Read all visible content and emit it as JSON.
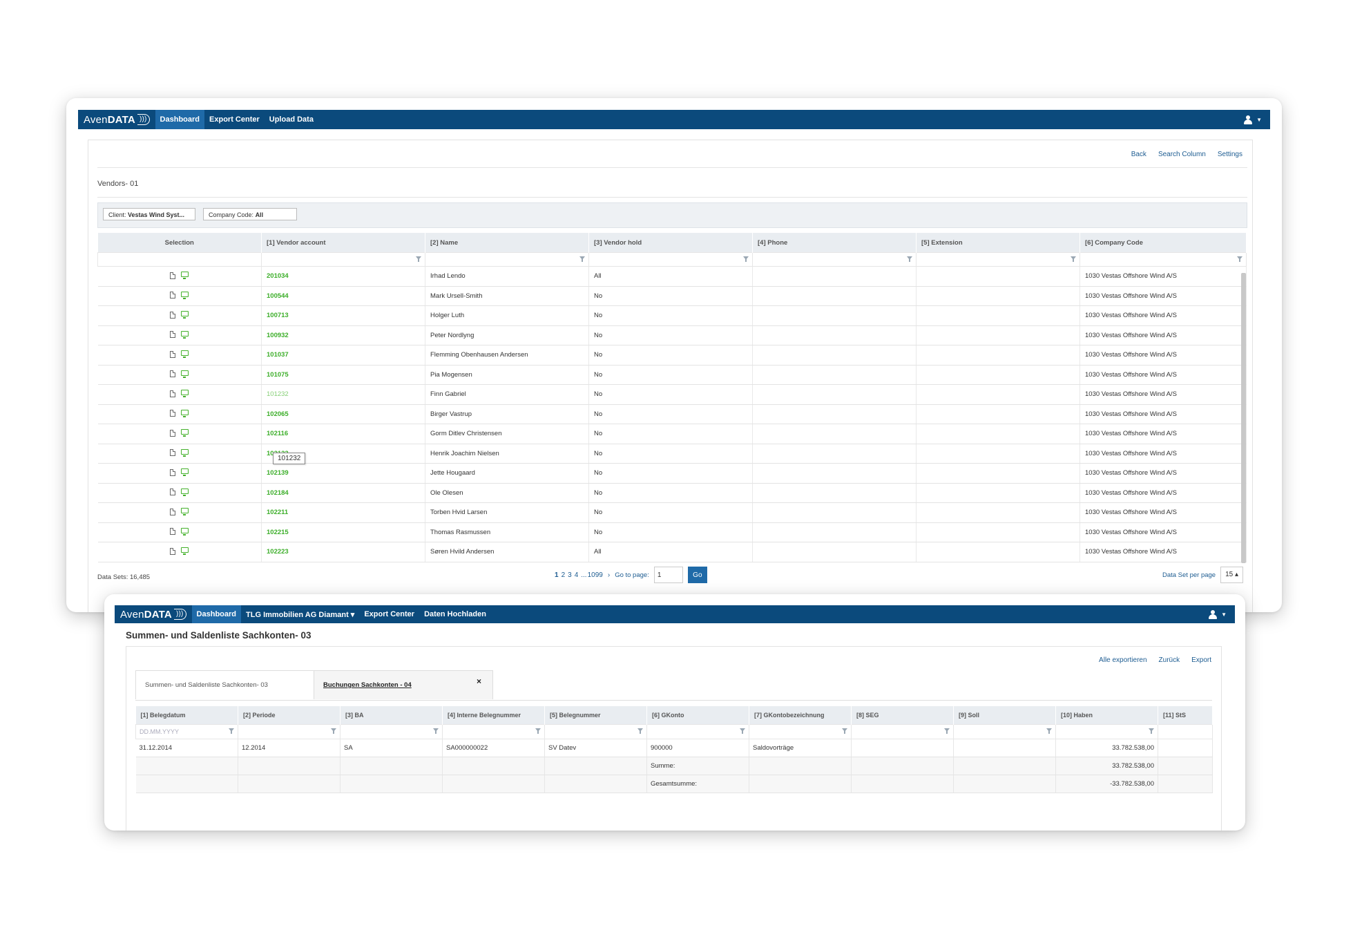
{
  "window1": {
    "nav": {
      "logo_light": "Aven",
      "logo_bold": "DATA",
      "items": [
        "Dashboard",
        "Export Center",
        "Upload Data"
      ]
    },
    "toplinks": [
      "Back",
      "Search Column",
      "Settings"
    ],
    "heading": "Vendors- 01",
    "filters": {
      "client_label": "Client:",
      "client_value": "Vestas Wind Syst...",
      "company_label": "Company Code:",
      "company_value": "All"
    },
    "columns": [
      "Selection",
      "[1] Vendor account",
      "[2] Name",
      "[3] Vendor hold",
      "[4] Phone",
      "[5] Extension",
      "[6] Company Code"
    ],
    "rows": [
      {
        "account": "201034",
        "name": "Irhad  Lendo",
        "hold": "All",
        "phone": "",
        "extension": "",
        "company": "1030 Vestas Offshore Wind A/S"
      },
      {
        "account": "100544",
        "name": "Mark Ursell-Smith",
        "hold": "No",
        "phone": "",
        "extension": "",
        "company": "1030 Vestas Offshore Wind A/S"
      },
      {
        "account": "100713",
        "name": "Holger Luth",
        "hold": "No",
        "phone": "",
        "extension": "",
        "company": "1030 Vestas Offshore Wind A/S"
      },
      {
        "account": "100932",
        "name": "Peter Nordlyng",
        "hold": "No",
        "phone": "",
        "extension": "",
        "company": "1030 Vestas Offshore Wind A/S"
      },
      {
        "account": "101037",
        "name": "Flemming Obenhausen Andersen",
        "hold": "No",
        "phone": "",
        "extension": "",
        "company": "1030 Vestas Offshore Wind A/S"
      },
      {
        "account": "101075",
        "name": "Pia Mogensen",
        "hold": "No",
        "phone": "",
        "extension": "",
        "company": "1030 Vestas Offshore Wind A/S"
      },
      {
        "account": "101232",
        "name": "Finn Gabriel",
        "hold": "No",
        "phone": "",
        "extension": "",
        "company": "1030 Vestas Offshore Wind A/S"
      },
      {
        "account": "102065",
        "name": "Birger Vastrup",
        "hold": "No",
        "phone": "",
        "extension": "",
        "company": "1030 Vestas Offshore Wind A/S"
      },
      {
        "account": "102116",
        "name": "Gorm Ditlev Christensen",
        "hold": "No",
        "phone": "",
        "extension": "",
        "company": "1030 Vestas Offshore Wind A/S"
      },
      {
        "account": "102123",
        "name": "Henrik Joachim Nielsen",
        "hold": "No",
        "phone": "",
        "extension": "",
        "company": "1030 Vestas Offshore Wind A/S"
      },
      {
        "account": "102139",
        "name": "Jette Hougaard",
        "hold": "No",
        "phone": "",
        "extension": "",
        "company": "1030 Vestas Offshore Wind A/S"
      },
      {
        "account": "102184",
        "name": "Ole Olesen",
        "hold": "No",
        "phone": "",
        "extension": "",
        "company": "1030 Vestas Offshore Wind A/S"
      },
      {
        "account": "102211",
        "name": "Torben Hvid Larsen",
        "hold": "No",
        "phone": "",
        "extension": "",
        "company": "1030 Vestas Offshore Wind A/S"
      },
      {
        "account": "102215",
        "name": "Thomas Rasmussen",
        "hold": "No",
        "phone": "",
        "extension": "",
        "company": "1030 Vestas Offshore Wind A/S"
      },
      {
        "account": "102223",
        "name": "Søren Hvild Andersen",
        "hold": "All",
        "phone": "",
        "extension": "",
        "company": "1030 Vestas Offshore Wind A/S"
      }
    ],
    "hovered_row": 6,
    "tooltip": "101232",
    "data_sets": "Data Sets: 16,485",
    "pager": {
      "pages": [
        "1",
        "2",
        "3",
        "4"
      ],
      "ellipsis": "...",
      "last": "1099",
      "next": "›",
      "goto_label": "Go to page:",
      "goto_value": "1",
      "go": "Go"
    },
    "per_page_label": "Data Set per page",
    "per_page_value": "15 ▴"
  },
  "window2": {
    "nav": {
      "logo_light": "Aven",
      "logo_bold": "DATA",
      "items": [
        "Dashboard",
        "TLG Immobilien AG Diamant ▾",
        "Export Center",
        "Daten Hochladen"
      ]
    },
    "title": "Summen- und Saldenliste Sachkonten- 03",
    "toplinks": [
      "Alle exportieren",
      "Zurück",
      "Export"
    ],
    "tabs": [
      "Summen- und Saldenliste Sachkonten- 03",
      "Buchungen Sachkonten - 04"
    ],
    "tab_close": "×",
    "columns": [
      "[1] Belegdatum",
      "[2] Periode",
      "[3] BA",
      "[4] Interne Belegnummer",
      "[5] Belegnummer",
      "[6] GKonto",
      "[7] GKontobezeichnung",
      "[8] SEG",
      "[9] Soll",
      "[10] Haben",
      "[11] StS"
    ],
    "date_placeholder": "DD.MM.YYYY",
    "rows": [
      [
        "31.12.2014",
        "12.2014",
        "SA",
        "SA000000022",
        "SV Datev",
        "900000",
        "Saldovorträge",
        "",
        "",
        "33.782.538,00",
        ""
      ],
      [
        "",
        "",
        "",
        "",
        "",
        "Summe:",
        "",
        "",
        "",
        "33.782.538,00",
        ""
      ],
      [
        "",
        "",
        "",
        "",
        "",
        "Gesamtsumme:",
        "",
        "",
        "",
        "-33.782.538,00",
        ""
      ]
    ]
  }
}
